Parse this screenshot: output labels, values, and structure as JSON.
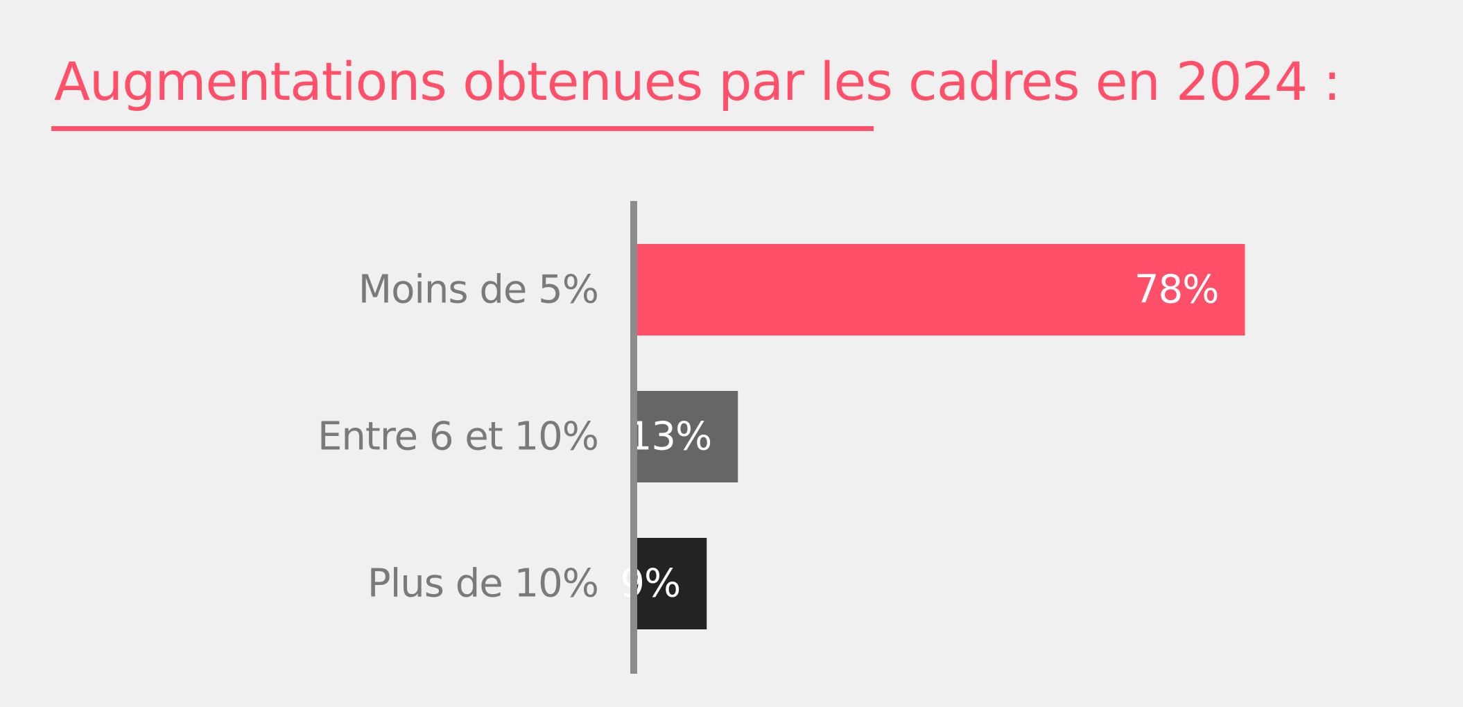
{
  "title": "Augmentations obtenues par les cadres en 2024 :",
  "colors": {
    "accent": "#ff4f69",
    "axis": "#8c8c8c",
    "label": "#7a7a7a",
    "background": "#f0f0f0"
  },
  "chart_data": {
    "type": "bar",
    "orientation": "horizontal",
    "title": "Augmentations obtenues par les cadres en 2024 :",
    "categories": [
      "Moins de 5%",
      "Entre 6 et 10%",
      "Plus de 10%"
    ],
    "values": [
      78,
      13,
      9
    ],
    "value_labels": [
      "78%",
      "13%",
      "9%"
    ],
    "bar_colors": [
      "#ff4f69",
      "#666666",
      "#232323"
    ],
    "xlim": [
      0,
      100
    ],
    "grid": false,
    "legend": "none"
  }
}
